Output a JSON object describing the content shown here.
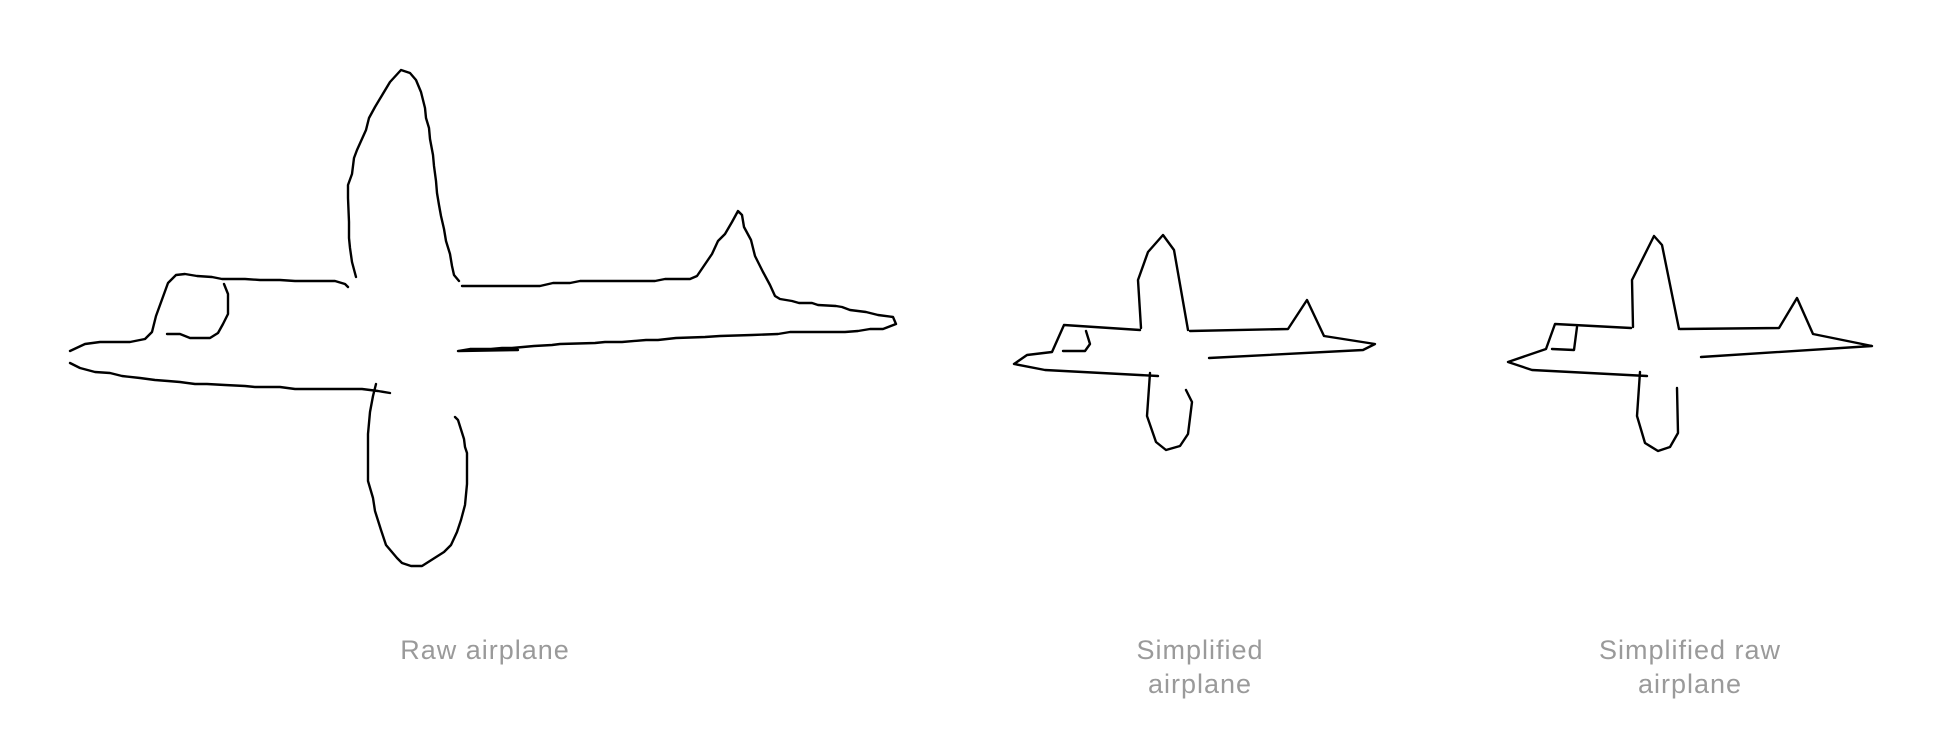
{
  "figure": {
    "stroke_color": "#000000",
    "caption_color": "#9a9a9a",
    "panels": [
      {
        "id": "raw",
        "caption_lines": [
          "Raw airplane"
        ],
        "drawing": "airplane-sketch"
      },
      {
        "id": "simplified",
        "caption_lines": [
          "Simplified",
          "airplane"
        ],
        "drawing": "airplane-sketch"
      },
      {
        "id": "simplified_raw",
        "caption_lines": [
          "Simplified raw",
          "airplane"
        ],
        "drawing": "airplane-sketch"
      }
    ]
  }
}
